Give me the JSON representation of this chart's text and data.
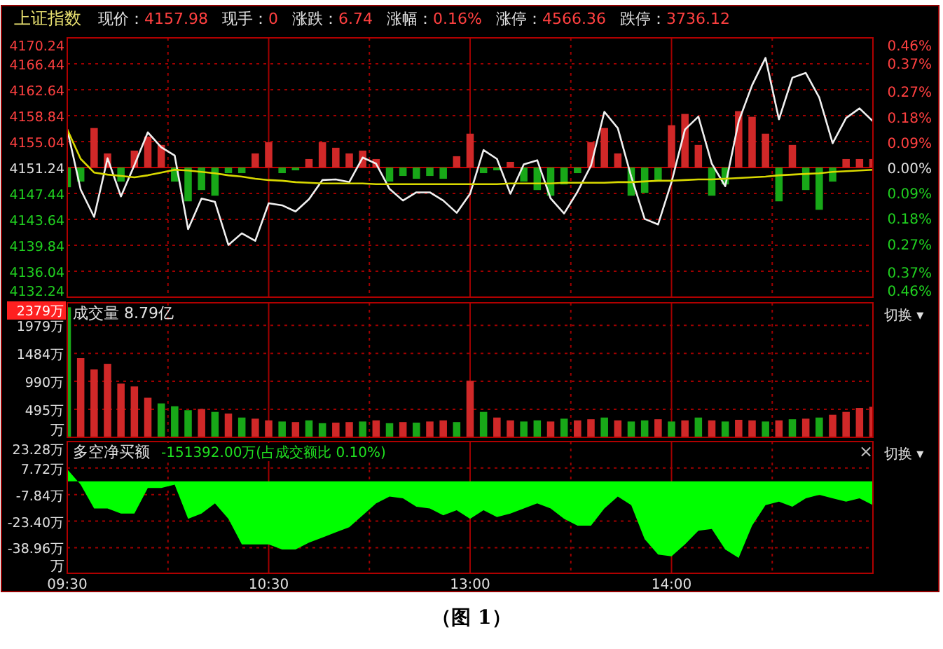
{
  "chart_data": [
    {
      "type": "line",
      "title": "上证指数",
      "annotations": [
        "现价：4157.98",
        "现手：0",
        "涨跌：6.74",
        "涨幅：0.16%",
        "涨停：4566.36",
        "跌停：3736.12"
      ],
      "categories": [
        null,
        null,
        null,
        null,
        null,
        null,
        null,
        null,
        null,
        null,
        null,
        null,
        null,
        null,
        null,
        null,
        null,
        null,
        null,
        null,
        null,
        null,
        null,
        null,
        null,
        null,
        null,
        null,
        null,
        null,
        null,
        null,
        null,
        null,
        null,
        null,
        null,
        null,
        null,
        null,
        null,
        null,
        null,
        null,
        null,
        null,
        null,
        null,
        null,
        null,
        null,
        null,
        null,
        null,
        null,
        null,
        null,
        null,
        null,
        null,
        null
      ],
      "series": [
        {
          "type": "line",
          "color": "#f0f0f0",
          "values": [
            4156.8,
            4148.0,
            4144.0,
            4152.6,
            4147.0,
            4151.6,
            4156.4,
            4154.2,
            4153.0,
            4142.2,
            4146.7,
            4146.2,
            4139.9,
            4141.6,
            4140.5,
            4146.0,
            4145.7,
            4144.8,
            4146.6,
            4149.4,
            4149.5,
            4149.1,
            4152.7,
            4151.8,
            4148.1,
            4146.4,
            4147.6,
            4147.6,
            4146.4,
            4144.6,
            4147.4,
            4153.8,
            4152.5,
            4147.4,
            4151.7,
            4152.3,
            4146.7,
            4144.5,
            4147.7,
            4151.5,
            4159.4,
            4157.0,
            4149.9,
            4143.7,
            4142.9,
            4149.1,
            4156.8,
            4158.7,
            4151.8,
            4148.5,
            4158.0,
            4163.3,
            4167.3,
            4158.3,
            4164.4,
            4165.1,
            4161.5,
            4154.8,
            4158.5,
            4159.9,
            4158.0
          ]
        },
        {
          "type": "line",
          "color": "#d8d800",
          "values": [
            4156.8,
            4152.5,
            4150.5,
            4150.2,
            4150.0,
            4149.8,
            4150.1,
            4150.5,
            4150.9,
            4150.8,
            4150.6,
            4150.4,
            4150.1,
            4149.9,
            4149.6,
            4149.4,
            4149.3,
            4149.1,
            4149.0,
            4148.9,
            4148.9,
            4148.9,
            4148.9,
            4148.8,
            4148.8,
            4148.8,
            4148.8,
            4148.8,
            4148.8,
            4148.8,
            4148.8,
            4148.8,
            4148.8,
            4148.9,
            4148.9,
            4148.9,
            4148.9,
            4149.0,
            4149.0,
            4149.0,
            4149.0,
            4149.1,
            4149.1,
            4149.2,
            4149.3,
            4149.3,
            4149.4,
            4149.5,
            4149.5,
            4149.6,
            4149.7,
            4149.8,
            4149.9,
            4150.1,
            4150.2,
            4150.3,
            4150.4,
            4150.6,
            4150.7,
            4150.8,
            4150.9
          ]
        },
        {
          "type": "bar",
          "axis": "y2",
          "values": [
            -0.07,
            -0.05,
            0.14,
            0.05,
            -0.05,
            0.06,
            0.11,
            0.08,
            -0.05,
            -0.12,
            -0.08,
            -0.1,
            -0.02,
            -0.02,
            0.05,
            0.09,
            -0.02,
            -0.01,
            0.03,
            0.09,
            0.07,
            0.05,
            0.06,
            0.03,
            -0.05,
            -0.03,
            -0.04,
            -0.03,
            -0.04,
            0.04,
            0.12,
            -0.02,
            -0.01,
            0.02,
            -0.05,
            -0.08,
            -0.1,
            -0.06,
            -0.02,
            0.09,
            0.14,
            0.05,
            -0.1,
            -0.09,
            -0.05,
            0.15,
            0.19,
            0.08,
            -0.1,
            -0.06,
            0.2,
            0.18,
            0.12,
            -0.12,
            0.08,
            -0.08,
            -0.15,
            -0.05,
            0.03,
            0.03,
            0.03
          ],
          "colors": [
            "#18a818",
            "#18a818",
            "#d02828",
            "#d02828",
            "#18a818",
            "#d02828",
            "#d02828",
            "#d02828",
            "#18a818",
            "#18a818",
            "#18a818",
            "#18a818",
            "#18a818",
            "#18a818",
            "#d02828",
            "#d02828",
            "#18a818",
            "#18a818",
            "#d02828",
            "#d02828",
            "#d02828",
            "#d02828",
            "#d02828",
            "#d02828",
            "#18a818",
            "#18a818",
            "#18a818",
            "#18a818",
            "#18a818",
            "#d02828",
            "#d02828",
            "#18a818",
            "#18a818",
            "#d02828",
            "#18a818",
            "#18a818",
            "#18a818",
            "#18a818",
            "#18a818",
            "#d02828",
            "#d02828",
            "#d02828",
            "#18a818",
            "#18a818",
            "#18a818",
            "#d02828",
            "#d02828",
            "#d02828",
            "#18a818",
            "#18a818",
            "#d02828",
            "#d02828",
            "#d02828",
            "#18a818",
            "#d02828",
            "#18a818",
            "#18a818",
            "#18a818",
            "#d02828",
            "#d02828",
            "#d02828"
          ]
        }
      ],
      "ylim": [
        4132.24,
        4170.24
      ],
      "yticks": [
        4132.24,
        4136.04,
        4139.84,
        4143.64,
        4147.44,
        4151.24,
        4155.04,
        4158.84,
        4162.64,
        4166.44,
        4170.24
      ],
      "y2lim": [
        -0.46,
        0.46
      ],
      "y2ticks": [
        {
          "value": -0.46,
          "label": "0.46%"
        },
        {
          "value": -0.37,
          "label": "0.37%"
        },
        {
          "value": -0.27,
          "label": "0.27%"
        },
        {
          "value": -0.18,
          "label": "0.18%"
        },
        {
          "value": -0.09,
          "label": "0.09%"
        },
        {
          "value": 0,
          "label": "0.00%"
        },
        {
          "value": 0.09,
          "label": "0.09%"
        },
        {
          "value": 0.18,
          "label": "0.18%"
        },
        {
          "value": 0.27,
          "label": "0.27%"
        },
        {
          "value": 0.37,
          "label": "0.37%"
        },
        {
          "value": 0.46,
          "label": "0.46%"
        }
      ],
      "ref_lines": [
        {
          "axis": "y",
          "value": 4151.24,
          "color": "#c00000"
        }
      ],
      "grid": true,
      "tick_labels": "y"
    },
    {
      "type": "bar",
      "title": "成交量 8.79亿",
      "annotations": [
        "切换 ▾"
      ],
      "ylabel": "万",
      "categories": [
        null,
        null,
        null,
        null,
        null,
        null,
        null,
        null,
        null,
        null,
        null,
        null,
        null,
        null,
        null,
        null,
        null,
        null,
        null,
        null,
        null,
        null,
        null,
        null,
        null,
        null,
        null,
        null,
        null,
        null,
        null,
        null,
        null,
        null,
        null,
        null,
        null,
        null,
        null,
        null,
        null,
        null,
        null,
        null,
        null,
        null,
        null,
        null,
        null,
        null,
        null,
        null,
        null,
        null,
        null,
        null,
        null,
        null,
        null,
        null,
        null
      ],
      "values": [
        2300,
        1400,
        1200,
        1300,
        950,
        900,
        700,
        600,
        550,
        480,
        500,
        450,
        420,
        350,
        330,
        300,
        280,
        270,
        300,
        250,
        260,
        270,
        280,
        300,
        250,
        270,
        260,
        280,
        300,
        270,
        1000,
        450,
        350,
        300,
        280,
        300,
        280,
        330,
        300,
        320,
        350,
        300,
        280,
        300,
        320,
        280,
        300,
        350,
        300,
        280,
        310,
        300,
        280,
        300,
        320,
        330,
        350,
        400,
        450,
        520,
        540
      ],
      "colors": [
        "#18a818",
        "#d02828",
        "#d02828",
        "#d02828",
        "#d02828",
        "#d02828",
        "#d02828",
        "#18a818",
        "#18a818",
        "#18a818",
        "#d02828",
        "#18a818",
        "#d02828",
        "#18a818",
        "#d02828",
        "#d02828",
        "#18a818",
        "#d02828",
        "#18a818",
        "#18a818",
        "#d02828",
        "#d02828",
        "#18a818",
        "#d02828",
        "#18a818",
        "#d02828",
        "#18a818",
        "#d02828",
        "#d02828",
        "#18a818",
        "#d02828",
        "#18a818",
        "#d02828",
        "#d02828",
        "#18a818",
        "#18a818",
        "#d02828",
        "#18a818",
        "#d02828",
        "#d02828",
        "#18a818",
        "#d02828",
        "#18a818",
        "#18a818",
        "#d02828",
        "#18a818",
        "#d02828",
        "#18a818",
        "#d02828",
        "#18a818",
        "#d02828",
        "#d02828",
        "#18a818",
        "#d02828",
        "#18a818",
        "#d02828",
        "#18a818",
        "#d02828",
        "#d02828",
        "#d02828",
        "#d02828"
      ],
      "ylim": [
        0,
        2379
      ],
      "yticks": [
        {
          "value": 495,
          "label": "495万"
        },
        {
          "value": 990,
          "label": "990万"
        },
        {
          "value": 1484,
          "label": "1484万"
        },
        {
          "value": 1979,
          "label": "1979万"
        },
        {
          "value": 2379,
          "label": "2379万"
        }
      ],
      "grid": true,
      "tick_labels": "y"
    },
    {
      "type": "area",
      "title": "多空净买额",
      "annotations": [
        "-151392.00万(占成交额比 0.10%)",
        "×",
        "切换 ▾",
        "（图 1）"
      ],
      "ylabel": "万",
      "color": "#00ff00",
      "categories": [
        "09:30",
        null,
        null,
        null,
        null,
        null,
        null,
        null,
        null,
        null,
        null,
        null,
        null,
        null,
        null,
        "10:30",
        null,
        null,
        null,
        null,
        null,
        null,
        null,
        null,
        null,
        null,
        null,
        null,
        null,
        null,
        "13:00",
        null,
        null,
        null,
        null,
        null,
        null,
        null,
        null,
        null,
        null,
        null,
        null,
        null,
        null,
        "14:00",
        null,
        null,
        null,
        null,
        null,
        null,
        null,
        null,
        null,
        null,
        null,
        null,
        null,
        null,
        null
      ],
      "values": [
        7,
        -2,
        -16,
        -16,
        -19,
        -19,
        -4,
        -4,
        -2,
        -22,
        -19,
        -13,
        -22,
        -37,
        -37,
        -37,
        -40,
        -40,
        -36,
        -33,
        -30,
        -27,
        -20,
        -13,
        -9,
        -10,
        -15,
        -16,
        -20,
        -17,
        -22,
        -17,
        -21,
        -19,
        -16,
        -13,
        -16,
        -22,
        -26,
        -26,
        -16,
        -9,
        -14,
        -34,
        -43,
        -44,
        -37,
        -29,
        -28,
        -40,
        -45,
        -26,
        -14,
        -12,
        -15,
        -10,
        -8,
        -10,
        -12,
        -10,
        -14
      ],
      "ylim": [
        -54,
        23.28
      ],
      "yticks": [
        {
          "value": -38.96,
          "label": "-38.96万"
        },
        {
          "value": -23.4,
          "label": "-23.40万"
        },
        {
          "value": -7.84,
          "label": "-7.84万"
        },
        {
          "value": 7.72,
          "label": "7.72万"
        },
        {
          "value": 23.28,
          "label": "23.28万"
        }
      ],
      "grid": true
    }
  ]
}
